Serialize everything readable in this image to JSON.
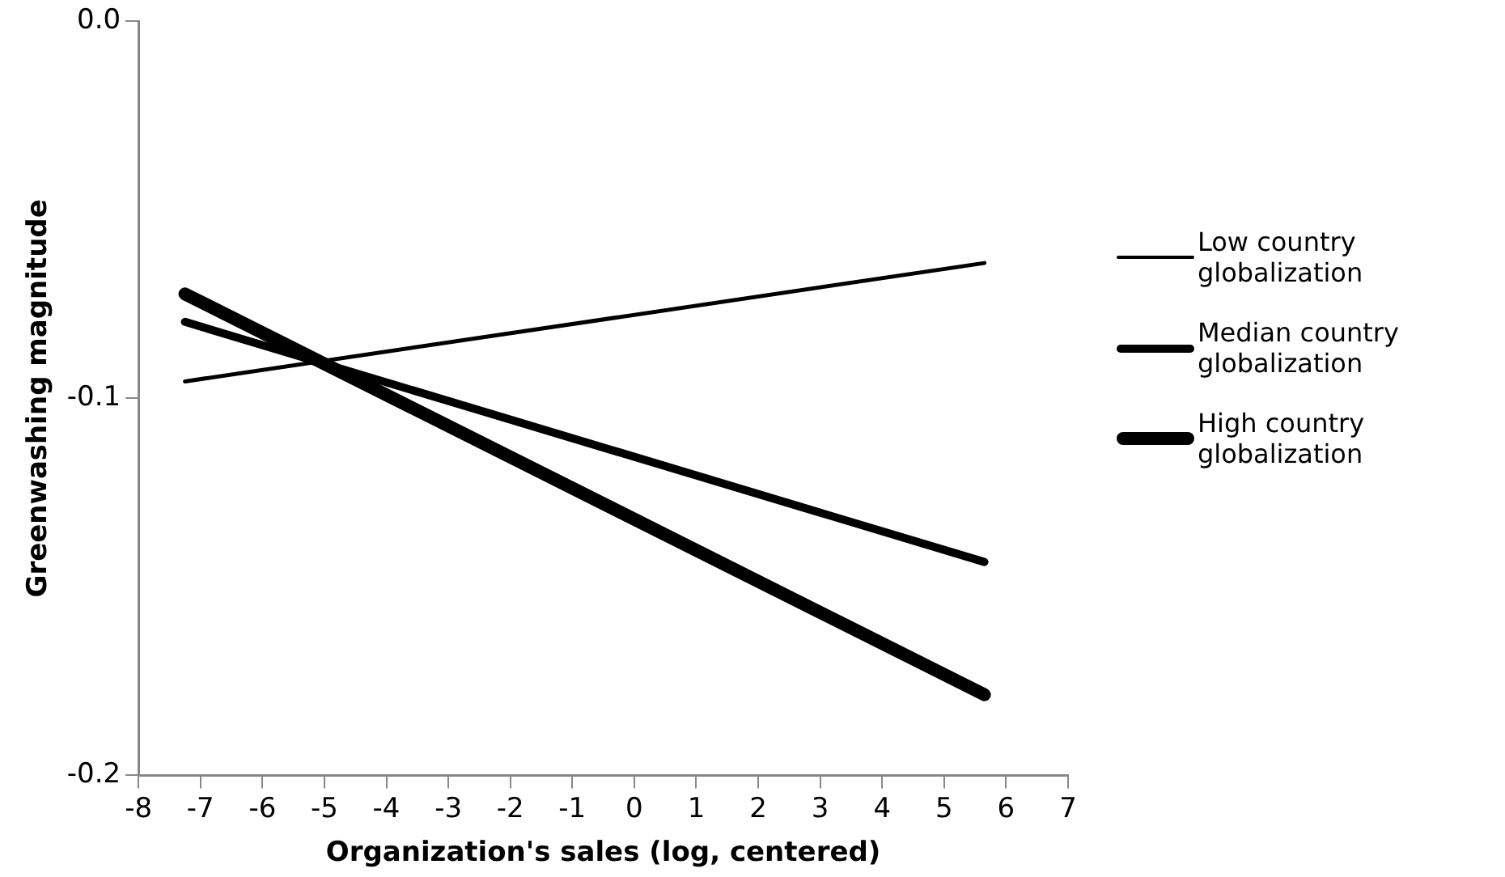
{
  "chart_data": {
    "type": "line",
    "xlabel": "Organization's sales (log, centered)",
    "ylabel": "Greenwashing magnitude",
    "x": [
      -7.25,
      5.65
    ],
    "series": [
      {
        "name": "Low country globalization",
        "color": "#000000",
        "values": [
          -0.0955,
          -0.0641
        ]
      },
      {
        "name": "Median country globalization",
        "color": "#000000",
        "values": [
          -0.0797,
          -0.1434
        ]
      },
      {
        "name": "High country globalization",
        "color": "#000000",
        "values": [
          -0.0723,
          -0.1786
        ]
      }
    ],
    "xlim": [
      -8,
      7
    ],
    "xticks": [
      -8,
      -7,
      -6,
      -5,
      -4,
      -3,
      -2,
      -1,
      0,
      1,
      2,
      3,
      4,
      5,
      6,
      7
    ],
    "ylim": [
      -0.2,
      0
    ],
    "yticks": [
      {
        "value": -0.2,
        "label": "-0.2"
      },
      {
        "value": -0.1,
        "label": "-0.1"
      },
      {
        "value": 0,
        "label": "0.0"
      }
    ],
    "grid": false,
    "legend": "right",
    "marker": "none",
    "line_style": "solid"
  }
}
